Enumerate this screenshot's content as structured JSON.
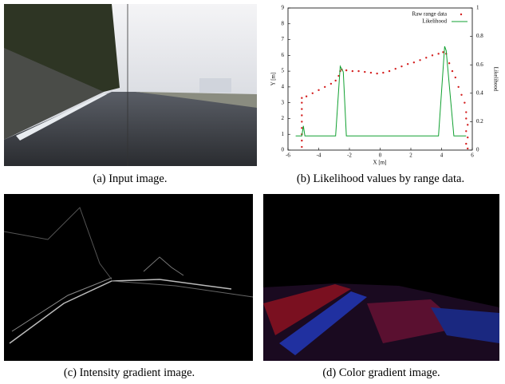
{
  "captions": [
    "(a) Input image.",
    "(b) Likelihood values by range data.",
    "(c) Intensity gradient image.",
    "(d) Color gradient image."
  ],
  "chart_data": {
    "type": "scatter",
    "xlabel": "X [m]",
    "ylabel": "Y [m]",
    "y2label": "Likelihood",
    "xlim": [
      -6,
      6
    ],
    "xticks": [
      -6,
      -4,
      -2,
      0,
      2,
      4,
      6
    ],
    "ylim": [
      0,
      9
    ],
    "yticks": [
      0,
      1,
      2,
      3,
      4,
      5,
      6,
      7,
      8,
      9
    ],
    "y2lim": [
      0,
      1
    ],
    "y2ticks": [
      0,
      0.2,
      0.4,
      0.6,
      0.8,
      1
    ],
    "legend": "upper right",
    "series": [
      {
        "name": "Raw range data",
        "color": "#d42020",
        "mode": "points",
        "x": [
          -5.1,
          -5.1,
          -5.1,
          -5.1,
          -5.1,
          -5.1,
          -5.1,
          -5.1,
          -5.1,
          -4.8,
          -4.4,
          -4.0,
          -3.6,
          -3.2,
          -2.9,
          -2.7,
          -2.6,
          -2.5,
          -2.2,
          -1.8,
          -1.4,
          -1.0,
          -0.6,
          -0.2,
          0.2,
          0.6,
          1.0,
          1.4,
          1.8,
          2.2,
          2.6,
          3.0,
          3.4,
          3.8,
          4.1,
          4.3,
          4.5,
          4.7,
          4.9,
          5.1,
          5.3,
          5.5,
          5.6,
          5.6,
          5.7,
          5.6,
          5.7,
          5.6,
          5.7
        ],
        "values": [
          0.2,
          0.6,
          1.0,
          1.4,
          1.8,
          2.2,
          2.6,
          3.0,
          3.3,
          3.4,
          3.6,
          3.8,
          4.0,
          4.2,
          4.4,
          4.7,
          5.0,
          5.1,
          5.05,
          5.0,
          5.0,
          4.95,
          4.9,
          4.85,
          4.9,
          5.0,
          5.15,
          5.3,
          5.45,
          5.55,
          5.7,
          5.85,
          6.0,
          6.1,
          6.2,
          6.1,
          5.5,
          5.0,
          4.6,
          4.0,
          3.5,
          3.0,
          2.4,
          2.0,
          1.6,
          1.2,
          0.8,
          0.4,
          0.1
        ]
      },
      {
        "name": "Likelihood",
        "color": "#10a030",
        "mode": "line",
        "axis": "y2",
        "x": [
          -5.5,
          -5.1,
          -5.0,
          -4.9,
          -2.9,
          -2.6,
          -2.4,
          -2.2,
          3.8,
          4.2,
          4.3,
          4.8,
          5.6
        ],
        "values": [
          0.1,
          0.1,
          0.17,
          0.1,
          0.1,
          0.59,
          0.55,
          0.1,
          0.1,
          0.73,
          0.7,
          0.1,
          0.1
        ]
      }
    ]
  }
}
